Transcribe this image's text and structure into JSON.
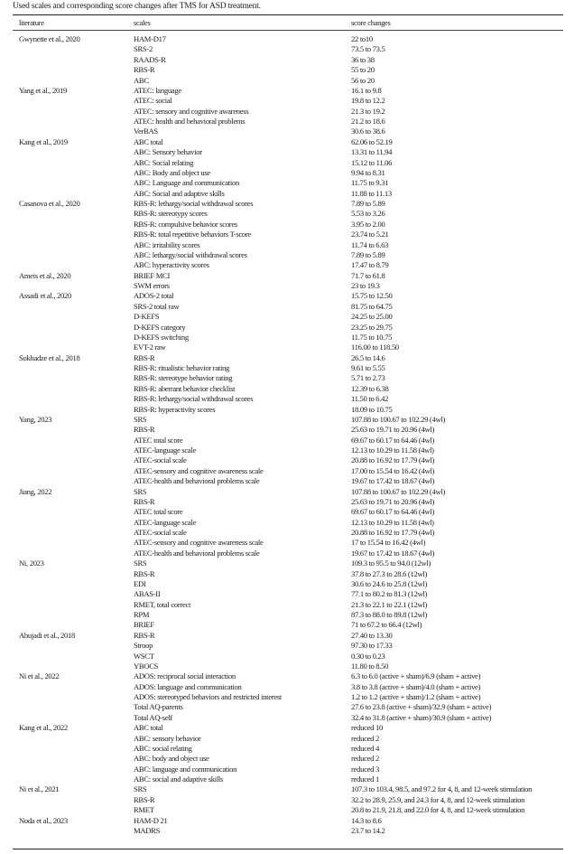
{
  "caption": "Used scales and corresponding score changes after TMS for ASD treatment.",
  "headers": {
    "literature": "literature",
    "scales": "scales",
    "score_changes": "score changes"
  },
  "groups": [
    {
      "literature": "Gwynette et al., 2020",
      "rows": [
        [
          "HAM-D17",
          "22 to10"
        ],
        [
          "SRS-2",
          "73.5 to 73.5"
        ],
        [
          "RAADS-R",
          "36 to 38"
        ],
        [
          "RBS-R",
          "55 to 20"
        ],
        [
          "ABC",
          "56 to 20"
        ]
      ]
    },
    {
      "literature": "Yang et al., 2019",
      "rows": [
        [
          "ATEC: language",
          "16.1 to 9.8"
        ],
        [
          "ATEC: social",
          "19.8 to 12.2"
        ],
        [
          "ATEC: sensory and cognitive awareness",
          "21.3 to 19.2"
        ],
        [
          "ATEC: health and behavioral problems",
          "21.2 to 18.6"
        ],
        [
          "VerBAS",
          "30.6 to 38.6"
        ]
      ]
    },
    {
      "literature": "Kang et al., 2019",
      "rows": [
        [
          "ABC total",
          "62.06 to 52.19"
        ],
        [
          "ABC: Sensory behavior",
          "13.31 to 11.94"
        ],
        [
          "ABC: Social relating",
          "15.12 to 11.06"
        ],
        [
          "ABC: Body and object use",
          "9.94 to 8.31"
        ],
        [
          "ABC: Language and communication",
          "11.75 to 9.31"
        ],
        [
          "ABC: Social and adaptive skills",
          "11.88 to 11.13"
        ]
      ]
    },
    {
      "literature": "Casanova et al., 2020",
      "rows": [
        [
          "RBS-R: lethargy/social withdrawal scores",
          "7.89 to 5.89"
        ],
        [
          "RBS-R: stereotypy scores",
          "5.53 to 3.26"
        ],
        [
          "RBS-R: compulsive behavior scores",
          "3.95 to 2.00"
        ],
        [
          "RBS-R: total repetitive behaviors T-score",
          "23.74 to 5.21"
        ],
        [
          "ABC: irritability scores",
          "11.74 to 6.63"
        ],
        [
          "ABC: lethargy/social withdrawal scores",
          "7.89 to 5.89"
        ],
        [
          "ABC: hyperactivity scores",
          "17.47 to 8.79"
        ]
      ]
    },
    {
      "literature": "Ameis et al., 2020",
      "rows": [
        [
          "BRIEF MCI",
          "71.7 to 61.8"
        ],
        [
          "SWM errors",
          "23 to 19.3"
        ]
      ]
    },
    {
      "literature": "Assadi et al., 2020",
      "rows": [
        [
          "ADOS-2 total",
          "15.75 to 12.50"
        ],
        [
          "SRS-2 total raw",
          "81.75 to 64.75"
        ],
        [
          "D-KEFS",
          "24.25 to 25.00"
        ],
        [
          "D-KEFS category",
          "23.25 to 29.75"
        ],
        [
          "D-KEFS switching",
          "11.75 to 10.75"
        ],
        [
          "EVT-2 raw",
          "116.00 to 118.50"
        ]
      ]
    },
    {
      "literature": "Sokhadze et al., 2018",
      "rows": [
        [
          "RBS-R",
          "26.5 to 14.6"
        ],
        [
          "RBS-R: ritualistic behavior rating",
          "9.61 to 5.55"
        ],
        [
          "RBS-R: stereotype behavior rating",
          "5.71 to 2.73"
        ],
        [
          "RBS-R: aberrant behavior checklist",
          "12.39 to 6.38"
        ],
        [
          "RBS-R: lethargy/social withdrawal scores",
          "11.50 to 6.42"
        ],
        [
          "RBS-R: hyperactivity scores",
          "18.09 to 10.75"
        ]
      ]
    },
    {
      "literature": "Yang, 2023",
      "rows": [
        [
          "SRS",
          "107.88 to 100.67 to 102.29 (4wl)"
        ],
        [
          "RBS-R",
          "25.63 to 19.71 to 20.96 (4wl)"
        ],
        [
          "ATEC total score",
          "69.67 to 60.17 to 64.46 (4wl)"
        ],
        [
          "ATEC-language scale",
          "12.13 to 10.29 to 11.58 (4wl)"
        ],
        [
          "ATEC-social scale",
          "20.88 to 16.92 to 17.79 (4wl)"
        ],
        [
          "ATEC-sensory and cognitive awareness scale",
          "17.00 to 15.54 to 16.42 (4wl)"
        ],
        [
          "ATEC-health and behavioral problems scale",
          "19.67 to 17.42 to 18.67 (4wl)"
        ]
      ]
    },
    {
      "literature": "Jiang, 2022",
      "rows": [
        [
          "SRS",
          "107.88 to 100.67 to 102.29 (4wl)"
        ],
        [
          "RBS-R",
          "25.63 to 19.71 to 20.96 (4wl)"
        ],
        [
          "ATEC total score",
          "69.67 to 60.17 to 64.46 (4wl)"
        ],
        [
          "ATEC-language scale",
          "12.13 to 10.29 to 11.58 (4wl)"
        ],
        [
          "ATEC-social scale",
          "20.88 to 16.92 to 17.79 (4wl)"
        ],
        [
          "ATEC-sensory and cognitive awareness scale",
          "17 to 15.54 to 16.42 (4wl)"
        ],
        [
          "ATEC-health and behavioral problems scale",
          "19.67 to 17.42 to 18.67 (4wl)"
        ]
      ]
    },
    {
      "literature": "Ni, 2023",
      "rows": [
        [
          "SRS",
          "109.3 to 95.5 to 94.0 (12wl)"
        ],
        [
          "RBS-R",
          "37.8 to 27.3 to 28.6 (12wl)"
        ],
        [
          "EDI",
          "30.6 to 24.6 to 25.8 (12wl)"
        ],
        [
          "ABAS-II",
          "77.1 to 80.2 to 81.3 (12wl)"
        ],
        [
          "RMET, total correct",
          "21.3 to 22.1 to 22.1 (12wl)"
        ],
        [
          "RPM",
          "87.3 to 88.0 to 89.8 (12wl)"
        ],
        [
          "BRIEF",
          "71 to 67.2 to 66.4 (12wl)"
        ]
      ]
    },
    {
      "literature": "Abujadi et al., 2018",
      "rows": [
        [
          "RBS-R",
          "27.40 to 13.30"
        ],
        [
          "Stroop",
          "97.30 to 17.33"
        ],
        [
          "WSCT",
          "0.30 to 0.23"
        ],
        [
          "YBOCS",
          "11.80 to 8.50"
        ]
      ]
    },
    {
      "literature": "Ni et al., 2022",
      "rows": [
        [
          "ADOS: reciprocal social interaction",
          "6.3 to 6.0 (active + sham)/6.9 (sham + active)"
        ],
        [
          "ADOS: language and communication",
          "3.8 to 3.8 (active + sham)/4.0 (sham + active)"
        ],
        [
          "ADOS: stereotyped behaviors and restricted interest",
          "1.2 to 1.2 (active + sham)/1.2 (sham + active)"
        ],
        [
          "Total AQ-parents",
          "27.6 to 23.8 (active + sham)/32.9 (sham + active)"
        ],
        [
          "Total AQ-self",
          "32.4 to 31.8 (active + sham)/30.9 (sham + active)"
        ]
      ]
    },
    {
      "literature": "Kang et al., 2022",
      "rows": [
        [
          "ABC total",
          "reduced 10"
        ],
        [
          "ABC: sensory behavior",
          "reduced 2"
        ],
        [
          "ABC: social relating",
          "reduced 4"
        ],
        [
          "ABC: body and object use",
          "reduced 2"
        ],
        [
          "ABC: language and communication",
          "reduced 3"
        ],
        [
          "ABC: social and adaptive skills",
          "reduced 1"
        ]
      ]
    },
    {
      "literature": "Ni et al., 2021",
      "rows": [
        [
          "SRS",
          "107.3 to 103.4, 98.5, and 97.2 for 4, 8, and 12-week stimulation"
        ],
        [
          "RBS-R",
          "32.2 to 28.9, 25.9, and 24.3 for 4, 8, and 12-week stimulation"
        ],
        [
          "RMET",
          "20.8 to 21.9, 21.8, and 22.0 for 4, 8, and 12-week stimulation"
        ]
      ]
    },
    {
      "literature": "Noda et al., 2023",
      "rows": [
        [
          "HAM-D 21",
          "14.3 to 8.6"
        ],
        [
          "MADRS",
          "23.7 to 14.2"
        ]
      ]
    }
  ]
}
